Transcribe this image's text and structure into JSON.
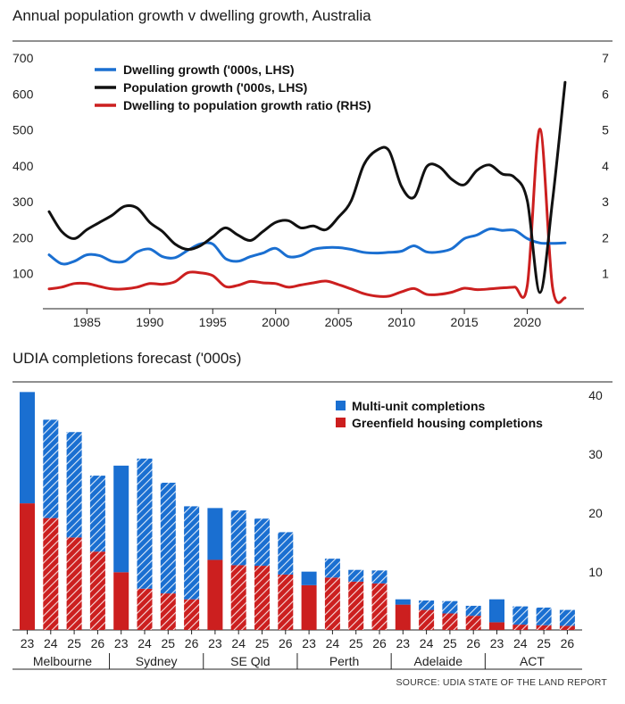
{
  "chart_data": [
    {
      "type": "line",
      "title": "Annual population growth v dwelling growth, Australia",
      "x_ticks": [
        1985,
        1990,
        1995,
        2000,
        2005,
        2010,
        2015,
        2020
      ],
      "lhs_ticks": [
        100,
        200,
        300,
        400,
        500,
        600,
        700
      ],
      "rhs_ticks": [
        1,
        2,
        3,
        4,
        5,
        6,
        7
      ],
      "lhs_range": [
        0,
        700
      ],
      "rhs_range": [
        0,
        7
      ],
      "x_range": [
        1981.5,
        2024.5
      ],
      "grid": false,
      "legend_position": "top-left",
      "series": [
        {
          "name": "Dwelling growth ('000s, LHS)",
          "axis": "left",
          "color": "#1a6fd1",
          "x": [
            1982,
            1983,
            1984,
            1985,
            1986,
            1987,
            1988,
            1989,
            1990,
            1991,
            1992,
            1993,
            1994,
            1995,
            1996,
            1997,
            1998,
            1999,
            2000,
            2001,
            2002,
            2003,
            2004,
            2005,
            2006,
            2007,
            2008,
            2009,
            2010,
            2011,
            2012,
            2013,
            2014,
            2015,
            2016,
            2017,
            2018,
            2019,
            2020,
            2021,
            2022,
            2023
          ],
          "y": [
            150,
            125,
            132,
            150,
            148,
            132,
            132,
            158,
            166,
            145,
            142,
            162,
            180,
            180,
            140,
            132,
            145,
            155,
            168,
            145,
            148,
            165,
            170,
            170,
            165,
            157,
            155,
            157,
            160,
            175,
            158,
            158,
            167,
            195,
            205,
            222,
            218,
            218,
            195,
            183,
            182,
            183
          ]
        },
        {
          "name": "Population growth ('000s, LHS)",
          "axis": "left",
          "color": "#111111",
          "x": [
            1982,
            1983,
            1984,
            1985,
            1986,
            1987,
            1988,
            1989,
            1990,
            1991,
            1992,
            1993,
            1994,
            1995,
            1996,
            1997,
            1998,
            1999,
            2000,
            2001,
            2002,
            2003,
            2004,
            2005,
            2006,
            2007,
            2008,
            2009,
            2010,
            2011,
            2012,
            2013,
            2014,
            2015,
            2016,
            2017,
            2018,
            2019,
            2020,
            2021,
            2022,
            2023
          ],
          "y": [
            270,
            215,
            195,
            220,
            240,
            260,
            285,
            280,
            240,
            215,
            180,
            165,
            175,
            200,
            225,
            205,
            190,
            215,
            240,
            245,
            225,
            230,
            220,
            255,
            300,
            400,
            440,
            440,
            340,
            310,
            395,
            395,
            360,
            345,
            385,
            400,
            375,
            365,
            300,
            45,
            300,
            630
          ]
        },
        {
          "name": "Dwelling to population growth ratio (RHS)",
          "axis": "right",
          "color": "#cc1f1f",
          "x": [
            1982,
            1983,
            1984,
            1985,
            1986,
            1987,
            1988,
            1989,
            1990,
            1991,
            1992,
            1993,
            1994,
            1995,
            1996,
            1997,
            1998,
            1999,
            2000,
            2001,
            2002,
            2003,
            2004,
            2005,
            2006,
            2007,
            2008,
            2009,
            2010,
            2011,
            2012,
            2013,
            2014,
            2015,
            2016,
            2017,
            2018,
            2019,
            2020,
            2021,
            2022,
            2023
          ],
          "y": [
            0.55,
            0.6,
            0.7,
            0.7,
            0.62,
            0.55,
            0.55,
            0.6,
            0.7,
            0.68,
            0.75,
            1.0,
            1.0,
            0.92,
            0.62,
            0.65,
            0.76,
            0.72,
            0.7,
            0.6,
            0.66,
            0.72,
            0.77,
            0.67,
            0.55,
            0.42,
            0.35,
            0.35,
            0.47,
            0.56,
            0.4,
            0.4,
            0.46,
            0.57,
            0.53,
            0.55,
            0.58,
            0.6,
            0.65,
            5.0,
            0.6,
            0.3
          ]
        }
      ]
    },
    {
      "type": "bar",
      "stacked": true,
      "title": "UDIA completions forecast ('000s)",
      "y_range": [
        0,
        40
      ],
      "y_ticks": [
        10,
        20,
        30,
        40
      ],
      "legend_position": "top-right",
      "year_labels": [
        "23",
        "24",
        "25",
        "26"
      ],
      "group_labels": [
        "Melbourne",
        "Sydney",
        "SE Qld",
        "Perth",
        "Adelaide",
        "ACT"
      ],
      "series": [
        {
          "name": "Multi-unit completions",
          "color": "#1a6fd1",
          "values": [
            [
              18.9,
              16.7,
              17.9,
              12.9
            ],
            [
              18.1,
              22.1,
              18.8,
              15.8
            ],
            [
              8.8,
              9.3,
              8.0,
              7.2
            ],
            [
              2.3,
              3.2,
              2.0,
              2.2
            ],
            [
              0.9,
              1.6,
              2.1,
              1.7
            ],
            [
              3.9,
              3.1,
              3.0,
              2.7
            ]
          ]
        },
        {
          "name": "Greenfield housing completions",
          "color": "#cc1f1f",
          "values": [
            [
              21.5,
              19.0,
              15.7,
              13.3
            ],
            [
              9.8,
              7.0,
              6.2,
              5.2
            ],
            [
              11.9,
              11.0,
              10.9,
              9.4
            ],
            [
              7.6,
              8.9,
              8.2,
              7.9
            ],
            [
              4.3,
              3.4,
              2.8,
              2.4
            ],
            [
              1.3,
              0.9,
              0.8,
              0.7
            ]
          ]
        }
      ]
    }
  ],
  "source": "SOURCE: UDIA STATE OF THE LAND REPORT"
}
